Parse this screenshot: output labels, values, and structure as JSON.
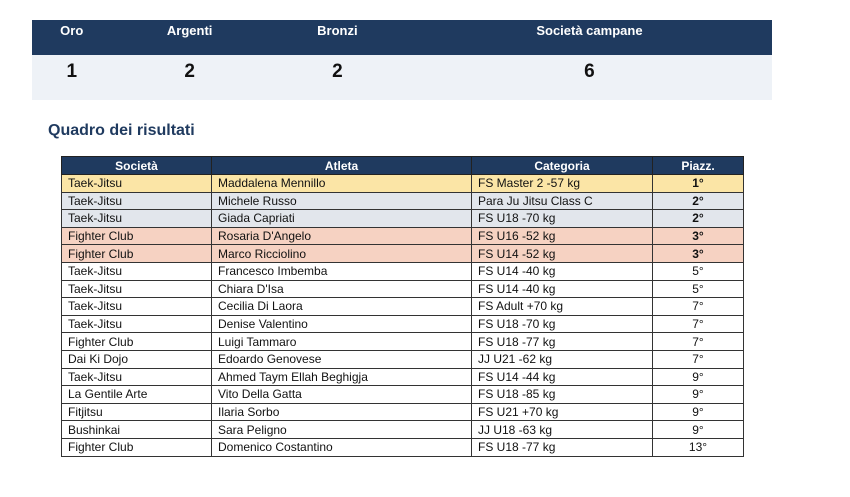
{
  "summary": {
    "headers": [
      "Oro",
      "Argenti",
      "Bronzi",
      "Società campane"
    ],
    "values": [
      "1",
      "2",
      "2",
      "6"
    ]
  },
  "section_title": "Quadro dei risultati",
  "table": {
    "headers": [
      "Società",
      "Atleta",
      "Categoria",
      "Piazz."
    ],
    "rows": [
      [
        "Taek-Jitsu",
        "Maddalena Mennillo",
        "FS Master 2 -57 kg",
        "1°"
      ],
      [
        "Taek-Jitsu",
        "Michele Russo",
        "Para Ju Jitsu Class C",
        "2°"
      ],
      [
        "Taek-Jitsu",
        "Giada Capriati",
        "FS U18 -70 kg",
        "2°"
      ],
      [
        "Fighter Club",
        "Rosaria D'Angelo",
        "FS U16 -52 kg",
        "3°"
      ],
      [
        "Fighter Club",
        "Marco Ricciolino",
        "FS U14 -52 kg",
        "3°"
      ],
      [
        "Taek-Jitsu",
        "Francesco Imbemba",
        "FS U14 -40 kg",
        "5°"
      ],
      [
        "Taek-Jitsu",
        "Chiara D'Isa",
        "FS U14 -40 kg",
        "5°"
      ],
      [
        "Taek-Jitsu",
        "Cecilia Di Laora",
        "FS Adult +70 kg",
        "7°"
      ],
      [
        "Taek-Jitsu",
        "Denise Valentino",
        "FS U18 -70 kg",
        "7°"
      ],
      [
        "Fighter Club",
        "Luigi Tammaro",
        "FS U18 -77 kg",
        "7°"
      ],
      [
        "Dai Ki Dojo",
        "Edoardo Genovese",
        "JJ U21 -62 kg",
        "7°"
      ],
      [
        "Taek-Jitsu",
        "Ahmed Taym Ellah Beghigja",
        "FS U14 -44 kg",
        "9°"
      ],
      [
        "La Gentile Arte",
        "Vito Della Gatta",
        "FS U18 -85 kg",
        "9°"
      ],
      [
        "Fitjitsu",
        "Ilaria Sorbo",
        "FS U21 +70 kg",
        "9°"
      ],
      [
        "Bushinkai",
        "Sara Peligno",
        "JJ U18 -63 kg",
        "9°"
      ],
      [
        "Fighter Club",
        "Domenico Costantino",
        "FS U18 -77 kg",
        "13°"
      ]
    ]
  }
}
